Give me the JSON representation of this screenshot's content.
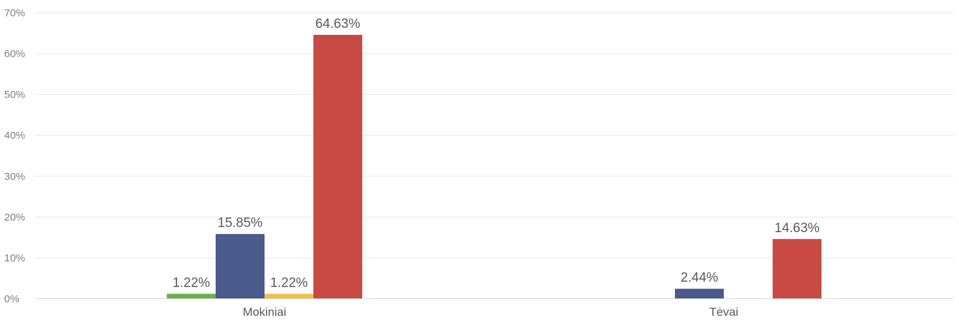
{
  "chart_data": {
    "type": "bar",
    "categories": [
      "Mokiniai",
      "Tėvai"
    ],
    "series": [
      {
        "color": "#6ab04c",
        "values": [
          1.22,
          null
        ],
        "labels": [
          "1.22%",
          ""
        ]
      },
      {
        "color": "#4a5a8a",
        "values": [
          15.85,
          2.44
        ],
        "labels": [
          "15.85%",
          "2.44%"
        ]
      },
      {
        "color": "#f0c24a",
        "values": [
          1.22,
          null
        ],
        "labels": [
          "1.22%",
          ""
        ]
      },
      {
        "color": "#c94a44",
        "values": [
          64.63,
          14.63
        ],
        "labels": [
          "64.63%",
          "14.63%"
        ]
      }
    ],
    "y_ticks": [
      "0%",
      "10%",
      "20%",
      "30%",
      "40%",
      "50%",
      "60%",
      "70%"
    ],
    "ylim": [
      0,
      70
    ],
    "grid": true,
    "legend": "none",
    "title": "",
    "xlabel": "",
    "ylabel": ""
  }
}
